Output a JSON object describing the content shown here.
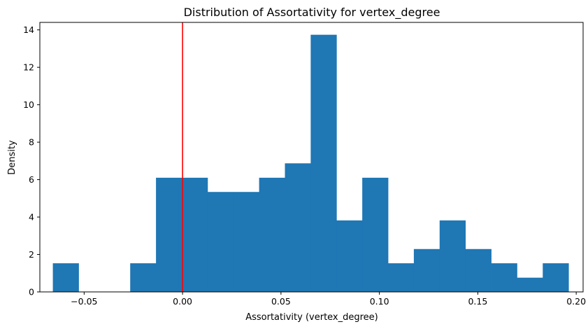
{
  "chart_data": {
    "type": "bar",
    "title": "Distribution of Assortativity for vertex_degree",
    "xlabel": "Assortativity (vertex_degree)",
    "ylabel": "Density",
    "xlim": [
      -0.0725,
      0.2035
    ],
    "ylim": [
      0,
      14.4
    ],
    "grid": false,
    "x_ticks": [
      {
        "value": -0.05,
        "label": "−0.05"
      },
      {
        "value": 0.0,
        "label": "0.00"
      },
      {
        "value": 0.05,
        "label": "0.05"
      },
      {
        "value": 0.1,
        "label": "0.10"
      },
      {
        "value": 0.15,
        "label": "0.15"
      },
      {
        "value": 0.2,
        "label": "0.20"
      }
    ],
    "y_ticks": [
      {
        "value": 0,
        "label": "0"
      },
      {
        "value": 2,
        "label": "2"
      },
      {
        "value": 4,
        "label": "4"
      },
      {
        "value": 6,
        "label": "6"
      },
      {
        "value": 8,
        "label": "8"
      },
      {
        "value": 10,
        "label": "10"
      },
      {
        "value": 12,
        "label": "12"
      },
      {
        "value": 14,
        "label": "14"
      }
    ],
    "bin_edges": [
      -0.0659,
      -0.0528,
      -0.0397,
      -0.0266,
      -0.0135,
      -0.0004,
      0.0127,
      0.0258,
      0.0389,
      0.052,
      0.0651,
      0.0782,
      0.0913,
      0.1044,
      0.1175,
      0.1306,
      0.1437,
      0.1568,
      0.1699,
      0.183,
      0.1961
    ],
    "values": [
      1.53,
      0,
      0,
      1.53,
      6.1,
      6.1,
      5.34,
      5.34,
      6.1,
      6.87,
      13.74,
      3.82,
      6.1,
      1.53,
      2.29,
      3.82,
      2.29,
      1.53,
      0.76,
      1.53
    ],
    "bar_color": "#1f77b4",
    "reference_line": {
      "x": 0.0,
      "color": "#ff0000"
    }
  }
}
